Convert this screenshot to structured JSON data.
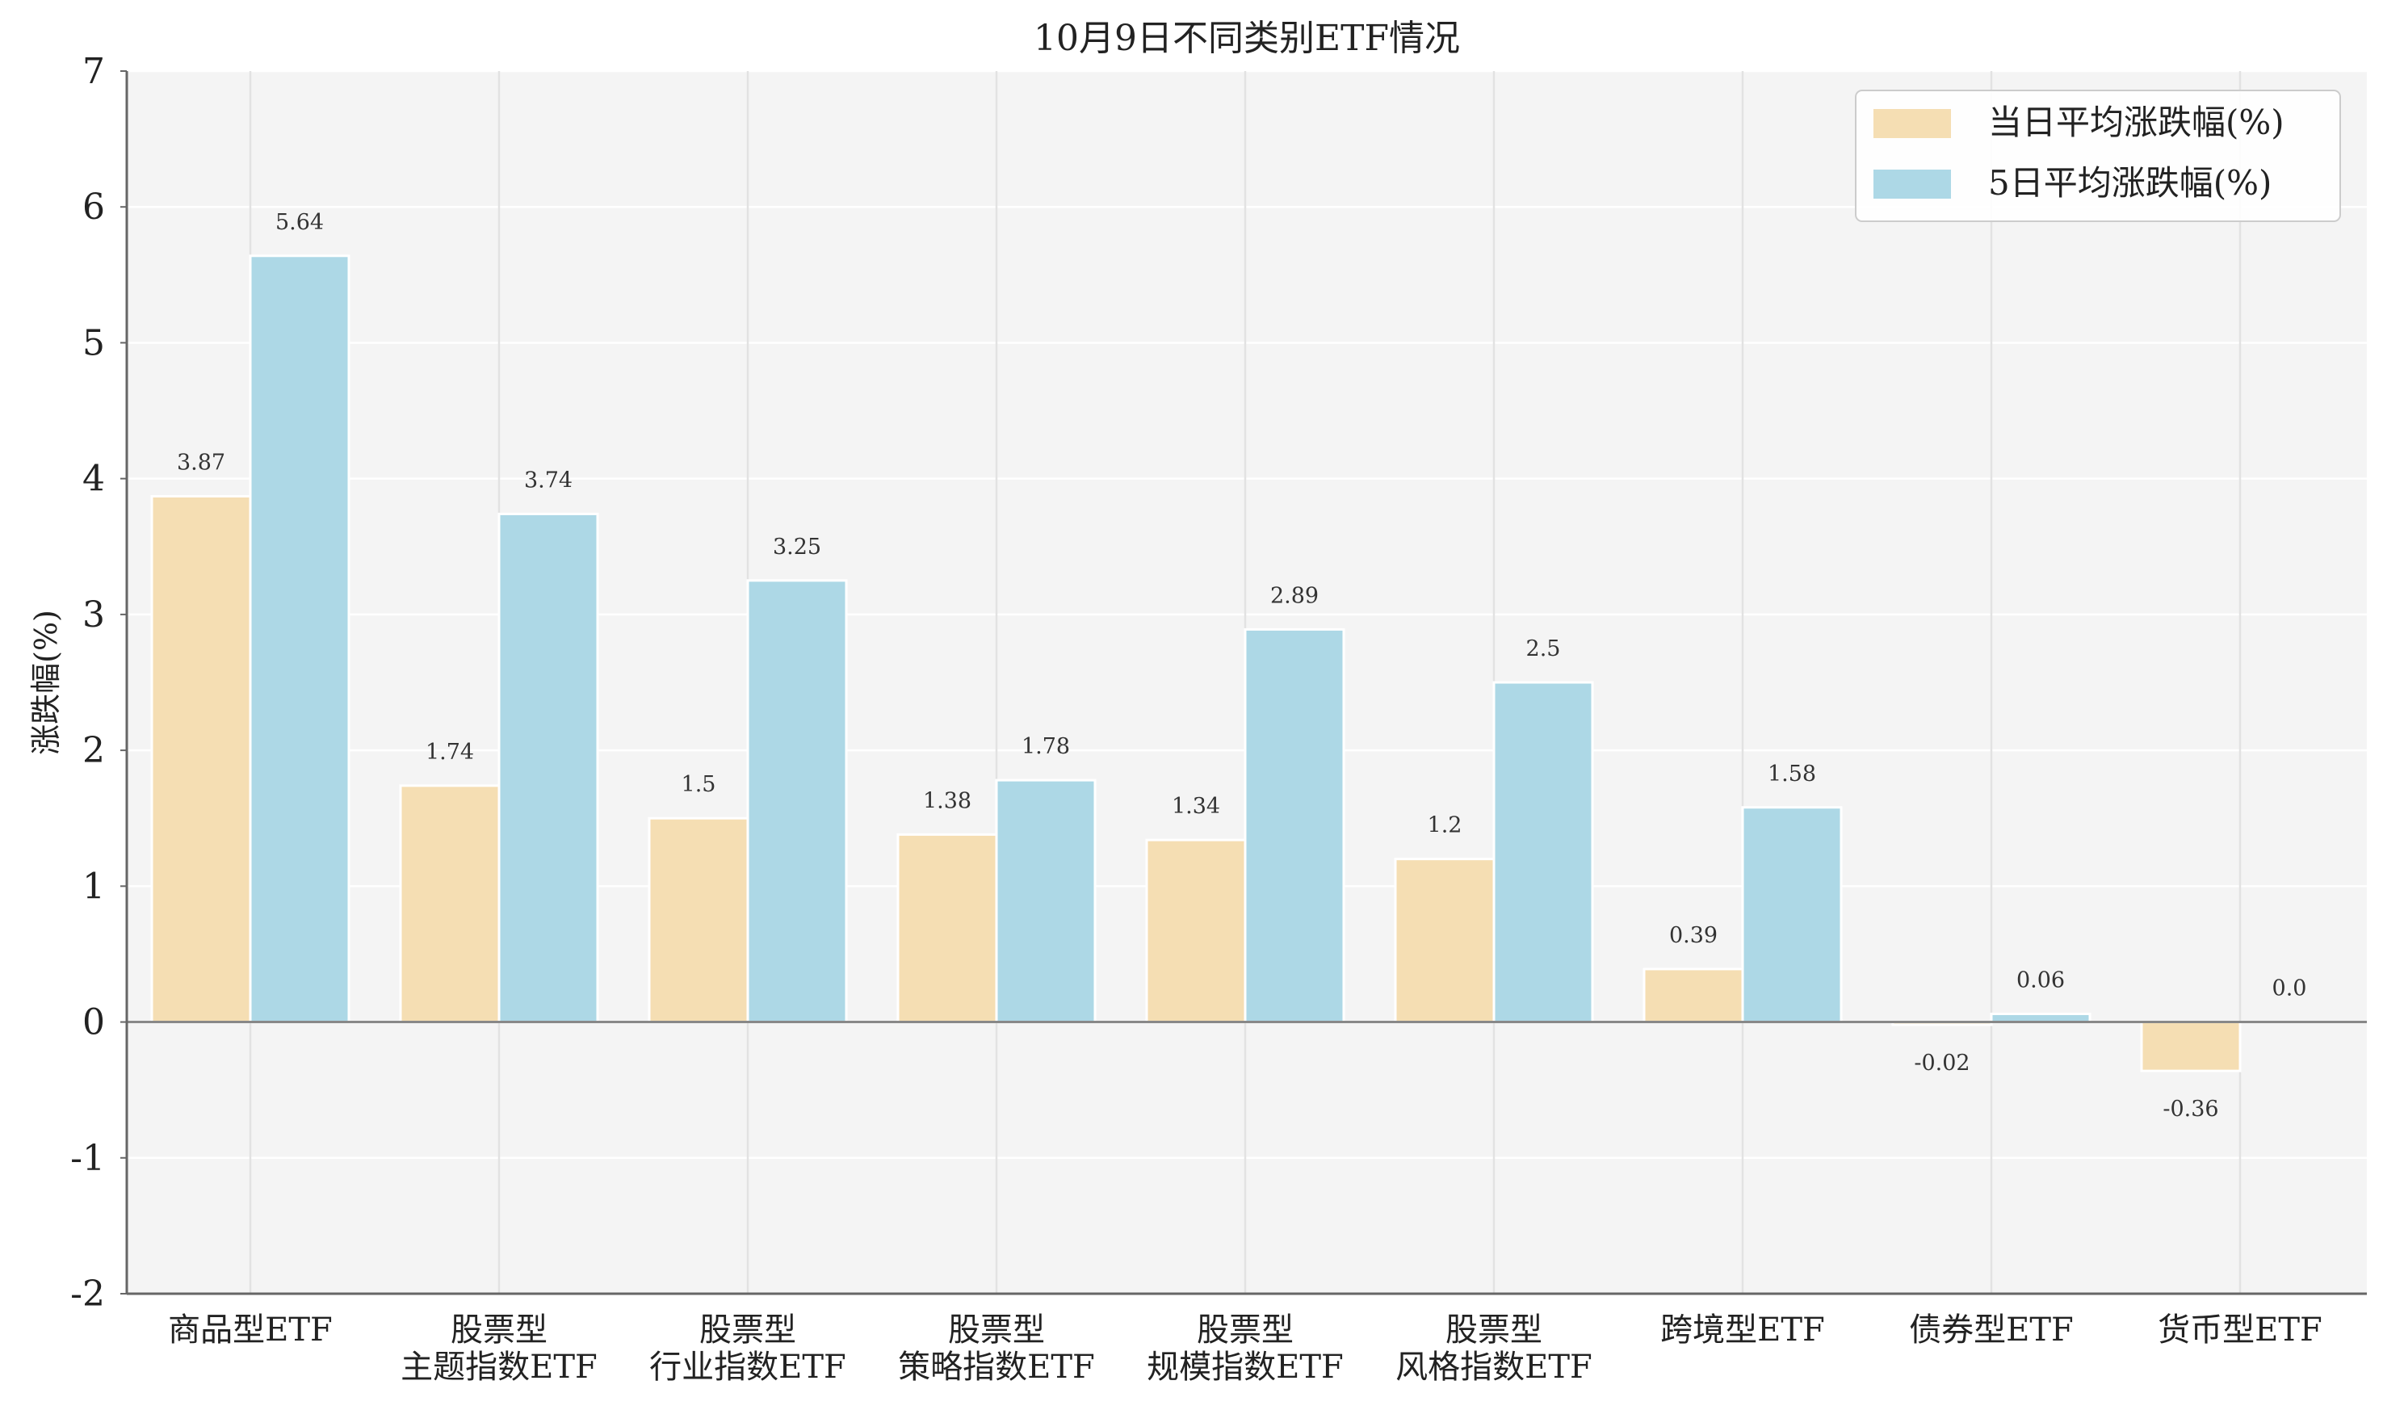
{
  "chart_data": {
    "type": "bar",
    "title": "10月9日不同类别ETF情况",
    "ylabel": "涨跌幅(%)",
    "xlabel": "",
    "ylim": [
      -2,
      7
    ],
    "yticks": [
      -2,
      -1,
      0,
      1,
      2,
      3,
      4,
      5,
      6,
      7
    ],
    "grid": true,
    "legend_position": "top-right",
    "categories": [
      [
        "商品型ETF"
      ],
      [
        "股票型",
        "主题指数ETF"
      ],
      [
        "股票型",
        "行业指数ETF"
      ],
      [
        "股票型",
        "策略指数ETF"
      ],
      [
        "股票型",
        "规模指数ETF"
      ],
      [
        "股票型",
        "风格指数ETF"
      ],
      [
        "跨境型ETF"
      ],
      [
        "债券型ETF"
      ],
      [
        "货币型ETF"
      ]
    ],
    "series": [
      {
        "name": "当日平均涨跌幅(%)",
        "color": "#f5deb3",
        "values": [
          3.87,
          1.74,
          1.5,
          1.38,
          1.34,
          1.2,
          0.39,
          -0.02,
          -0.36
        ],
        "labels": [
          "3.87",
          "1.74",
          "1.5",
          "1.38",
          "1.34",
          "1.2",
          "0.39",
          "-0.02",
          "-0.36"
        ]
      },
      {
        "name": "5日平均涨跌幅(%)",
        "color": "#add8e6",
        "values": [
          5.64,
          3.74,
          3.25,
          1.78,
          2.89,
          2.5,
          1.58,
          0.06,
          0.0
        ],
        "labels": [
          "5.64",
          "3.74",
          "3.25",
          "1.78",
          "2.89",
          "2.5",
          "1.58",
          "0.06",
          "0.0"
        ]
      }
    ]
  }
}
